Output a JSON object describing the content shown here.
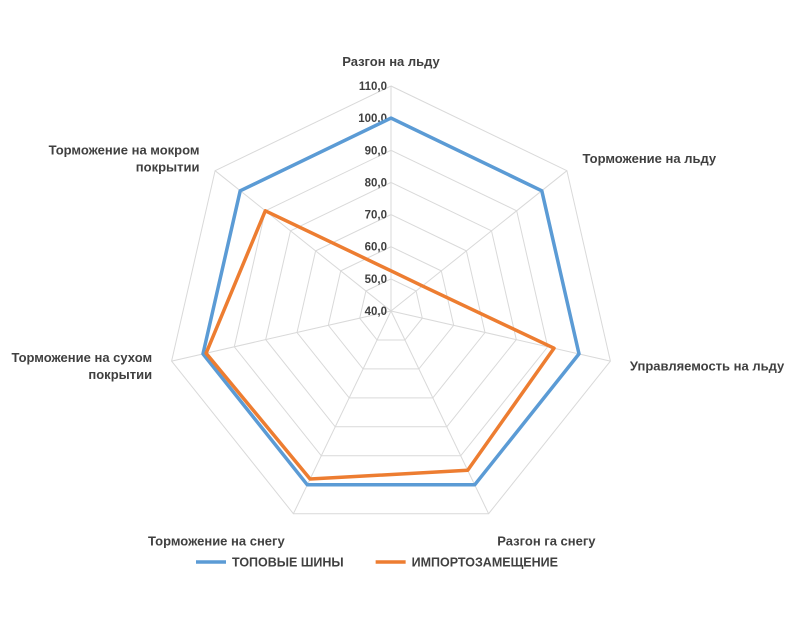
{
  "chart_data": {
    "type": "radar",
    "categories": [
      [
        "Разгон на льду"
      ],
      [
        "Торможение на льду"
      ],
      [
        "Управляемость на льду"
      ],
      [
        "Разгон га снегу"
      ],
      [
        "Торможение на снегу"
      ],
      [
        "Торможение на сухом",
        "покрытии"
      ],
      [
        "Торможение на мокром",
        "покрытии"
      ]
    ],
    "rmin": 40,
    "rmax": 110,
    "step": 10,
    "tick_labels": [
      "40,0",
      "50,0",
      "60,0",
      "70,0",
      "80,0",
      "90,0",
      "100,0",
      "110,0"
    ],
    "grid": true,
    "legend_position": "bottom",
    "series": [
      {
        "name": "ТОПОВЫЕ ШИНЫ",
        "color": "#5B9BD5",
        "values": [
          100,
          100,
          100,
          100,
          100,
          100,
          100
        ]
      },
      {
        "name": "ИМПОРТОЗАМЕЩЕНИЕ",
        "color": "#ED7D31",
        "values": [
          52.5,
          52.5,
          92,
          95,
          98,
          99,
          90
        ]
      }
    ]
  }
}
